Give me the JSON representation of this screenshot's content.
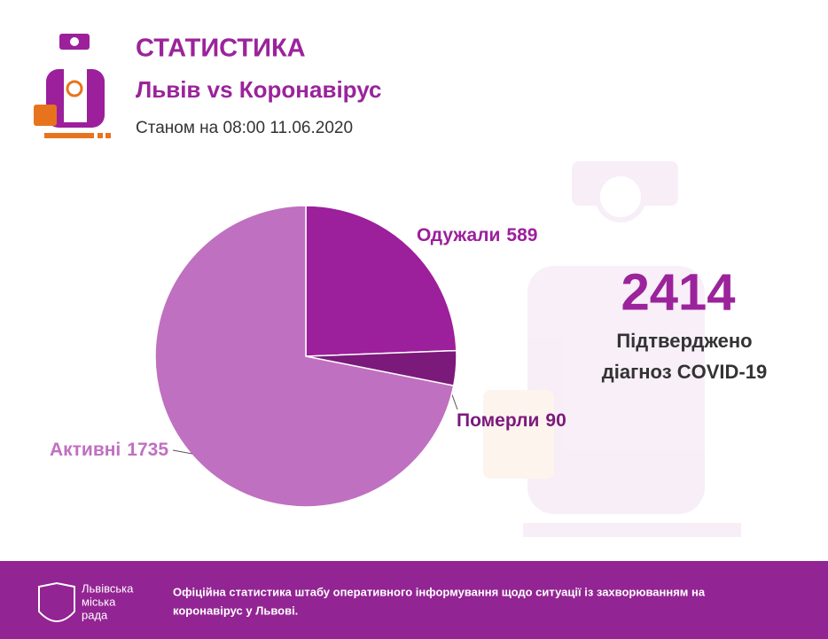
{
  "header": {
    "title": "СТАТИСТИКА",
    "subtitle": "Львів vs Коронавірус",
    "date": "Станом на 08:00 11.06.2020"
  },
  "chart_data": {
    "type": "pie",
    "categories": [
      "Одужали",
      "Померли",
      "Активні"
    ],
    "values": [
      589,
      90,
      1735
    ],
    "colors": [
      "#9c1f9c",
      "#7b1a7b",
      "#c070c0"
    ]
  },
  "summary": {
    "total": 2414,
    "label_lines": [
      "Підтверджено",
      "діагноз COVID-19"
    ]
  },
  "footer": {
    "logo_lines": [
      "Львівська",
      "міська",
      "рада"
    ],
    "text_lines": [
      "Офіційна статистика штабу оперативного інформування щодо ситуації із захворюванням на",
      "коронавірус у Львові."
    ]
  }
}
